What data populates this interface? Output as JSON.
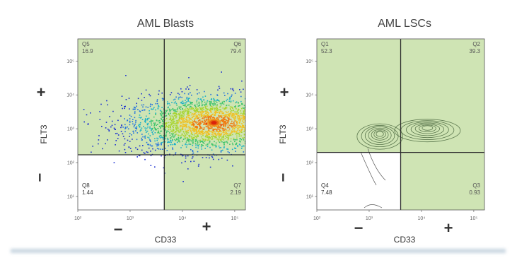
{
  "chart_data": [
    {
      "type": "scatter",
      "title": "AML Blasts",
      "xlabel": "CD33",
      "ylabel": "FLT3",
      "x_scale": "log",
      "y_scale": "log",
      "xlim": [
        100,
        160000
      ],
      "ylim": [
        4,
        450000
      ],
      "x_ticks": [
        {
          "v": 100,
          "label": "10²"
        },
        {
          "v": 1000,
          "label": "10³"
        },
        {
          "v": 10000,
          "label": "10⁴"
        },
        {
          "v": 100000,
          "label": "10⁵"
        }
      ],
      "y_ticks": [
        {
          "v": 10,
          "label": "10¹"
        },
        {
          "v": 100,
          "label": "10²"
        },
        {
          "v": 1000,
          "label": "10³"
        },
        {
          "v": 10000,
          "label": "10⁴"
        },
        {
          "v": 100000,
          "label": "10⁵"
        }
      ],
      "gates": {
        "x": 4500,
        "y": 170
      },
      "x_sign_neg": "−",
      "x_sign_pos": "+",
      "y_sign_pos": "+",
      "y_sign_neg": "−",
      "quadrants": [
        {
          "name": "Q5",
          "value": "16.9",
          "pos": "top-left"
        },
        {
          "name": "Q6",
          "value": "79.4",
          "pos": "top-right"
        },
        {
          "name": "Q8",
          "value": "1.44",
          "pos": "bottom-left"
        },
        {
          "name": "Q7",
          "value": "2.19",
          "pos": "bottom-right"
        }
      ],
      "density_center": [
        40000,
        1500
      ],
      "fill_color": "#cfe4b4",
      "grid": false
    },
    {
      "type": "scatter",
      "title": "AML LSCs",
      "xlabel": "CD33",
      "ylabel": "FLT3",
      "x_scale": "log",
      "y_scale": "log",
      "xlim": [
        100,
        160000
      ],
      "ylim": [
        4,
        450000
      ],
      "x_ticks": [
        {
          "v": 100,
          "label": "10²"
        },
        {
          "v": 1000,
          "label": "10³"
        },
        {
          "v": 10000,
          "label": "10⁴"
        },
        {
          "v": 100000,
          "label": "10⁵"
        }
      ],
      "y_ticks": [
        {
          "v": 10,
          "label": "10¹"
        },
        {
          "v": 100,
          "label": "10²"
        },
        {
          "v": 1000,
          "label": "10³"
        },
        {
          "v": 10000,
          "label": "10⁴"
        },
        {
          "v": 100000,
          "label": "10⁵"
        }
      ],
      "gates": {
        "x": 4000,
        "y": 200
      },
      "x_sign_neg": "−",
      "x_sign_pos": "+",
      "y_sign_pos": "+",
      "y_sign_neg": "−",
      "quadrants": [
        {
          "name": "Q1",
          "value": "52.3",
          "pos": "top-left"
        },
        {
          "name": "Q2",
          "value": "39.3",
          "pos": "top-right"
        },
        {
          "name": "Q4",
          "value": "7.48",
          "pos": "bottom-left"
        },
        {
          "name": "Q3",
          "value": "0.93",
          "pos": "bottom-right"
        }
      ],
      "contour_centers": [
        [
          1600,
          700
        ],
        [
          13000,
          1050
        ]
      ],
      "fill_color": "#cfe4b4",
      "grid": false
    }
  ]
}
